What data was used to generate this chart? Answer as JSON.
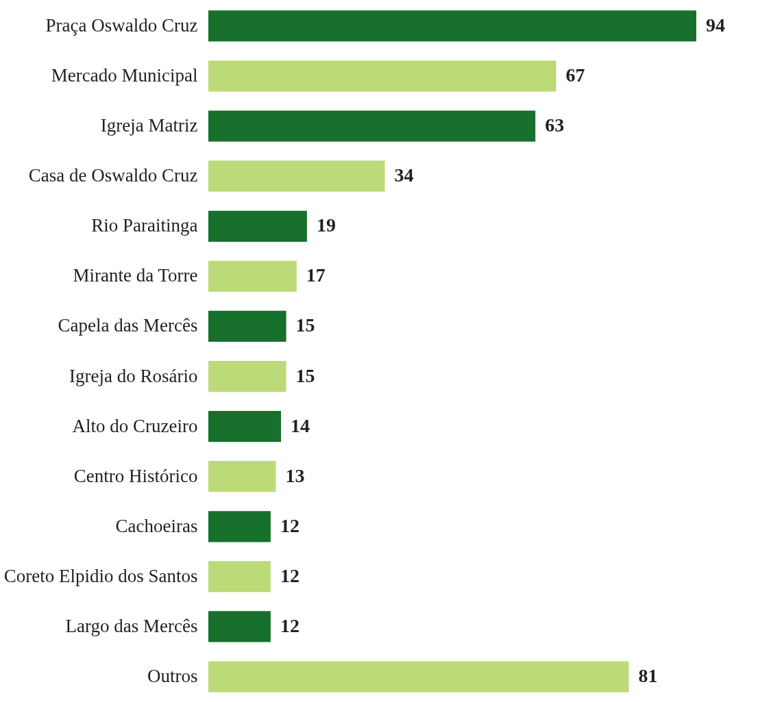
{
  "chart_data": {
    "type": "bar",
    "orientation": "horizontal",
    "data_labels": true,
    "categories": [
      "Praça Oswaldo Cruz",
      "Mercado Municipal",
      "Igreja Matriz",
      "Casa de Oswaldo Cruz",
      "Rio Paraitinga",
      "Mirante da Torre",
      "Capela das Mercês",
      "Igreja do Rosário",
      "Alto do Cruzeiro",
      "Centro Histórico",
      "Cachoeiras",
      "Coreto Elpidio dos Santos",
      "Largo das Mercês",
      "Outros"
    ],
    "values": [
      94,
      67,
      63,
      34,
      19,
      17,
      15,
      15,
      14,
      13,
      12,
      12,
      12,
      81
    ],
    "colors": [
      "#17702c",
      "#bdda78",
      "#17702c",
      "#bdda78",
      "#17702c",
      "#bdda78",
      "#17702c",
      "#bdda78",
      "#17702c",
      "#bdda78",
      "#17702c",
      "#bdda78",
      "#17702c",
      "#bdda78"
    ],
    "tick_labels": "y",
    "grid": false,
    "legend": false
  }
}
